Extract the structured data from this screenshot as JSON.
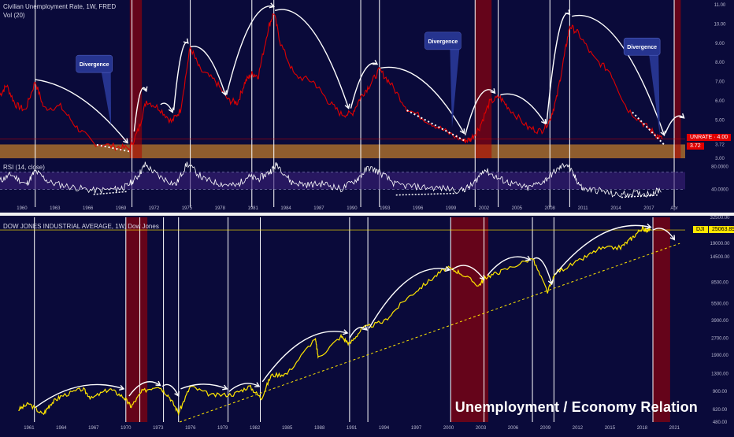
{
  "colors": {
    "background": "#0a0a3a",
    "unrate_line": "#e00000",
    "dji_line": "#ffe600",
    "rsi_line": "#ffffff",
    "recession": "#b00000",
    "support_band": "#c8802a",
    "callout": "#26348f",
    "annotation": "#ffffff"
  },
  "top_panel": {
    "legend_series": "Civilian Unemployment Rate, 1W, FRED",
    "legend_vol": "Vol (20)",
    "unrate_tag": "UNRATE · 4.00",
    "support_tag": "3.72",
    "callouts": [
      "Divergence",
      "Divergence",
      "Divergence"
    ]
  },
  "rsi_panel": {
    "legend": "RSI (14, close)"
  },
  "bottom_panel": {
    "legend": "DOW JONES INDUSTRIAL AVERAGE, 1W, Dow Jones",
    "price_tag_symbol": "DJI",
    "price_tag_value": "25063.89"
  },
  "watermark": "Unemployment / Economy Relation",
  "chart_data": [
    {
      "type": "line",
      "title": "Civilian Unemployment Rate, 1W, FRED",
      "series": [
        {
          "name": "Civilian Unemployment Rate",
          "x": [
            1958.0,
            1958.6,
            1959.4,
            1960.3,
            1961.2,
            1962.0,
            1963.5,
            1965.0,
            1966.5,
            1968.5,
            1969.8,
            1970.6,
            1971.3,
            1972.5,
            1973.6,
            1974.4,
            1975.3,
            1976.2,
            1977.6,
            1978.8,
            1979.6,
            1980.3,
            1980.9,
            1981.5,
            1982.4,
            1982.9,
            1983.5,
            1984.8,
            1986.5,
            1987.8,
            1989.0,
            1990.0,
            1990.8,
            1991.6,
            1992.5,
            1993.5,
            1995.0,
            1997.0,
            1998.5,
            2000.2,
            2000.8,
            2001.6,
            2002.5,
            2003.4,
            2004.3,
            2006.0,
            2007.2,
            2008.0,
            2008.6,
            2009.3,
            2009.8,
            2010.6,
            2012.0,
            2013.5,
            2015.0,
            2016.5,
            2017.5,
            2018.2
          ],
          "values": [
            6.3,
            6.8,
            5.8,
            5.5,
            7.0,
            5.6,
            5.7,
            4.6,
            3.8,
            3.6,
            3.5,
            4.5,
            6.0,
            5.6,
            4.9,
            5.5,
            8.8,
            7.6,
            7.0,
            6.0,
            5.9,
            7.0,
            7.4,
            7.3,
            9.8,
            10.6,
            9.0,
            7.3,
            7.0,
            6.0,
            5.3,
            5.3,
            6.2,
            6.8,
            7.6,
            6.9,
            5.6,
            4.9,
            4.4,
            3.9,
            4.0,
            4.6,
            5.9,
            6.2,
            5.6,
            4.6,
            4.4,
            5.0,
            6.1,
            8.3,
            9.9,
            9.5,
            8.2,
            7.5,
            5.6,
            4.8,
            4.3,
            4.0
          ]
        }
      ],
      "ylim": [
        3.0,
        11.0
      ],
      "y_ticks": [
        "11.00",
        "10.00",
        "9.00",
        "8.00",
        "7.00",
        "6.00",
        "5.00",
        "4.00",
        "3.72",
        "3.00"
      ],
      "x_ticks": [
        "1960",
        "1963",
        "1966",
        "1969",
        "1972",
        "1975",
        "1978",
        "1981",
        "1984",
        "1987",
        "1990",
        "1993",
        "1996",
        "1999",
        "2002",
        "2005",
        "2008",
        "2011",
        "2014",
        "2017",
        "Apr"
      ],
      "x_tick_values": [
        1960,
        1963,
        1966,
        1969,
        1972,
        1975,
        1978,
        1981,
        1984,
        1987,
        1990,
        1993,
        1996,
        1999,
        2002,
        2005,
        2008,
        2011,
        2014,
        2017,
        2019.3
      ],
      "recessions": [
        [
          1969.8,
          1970.9
        ],
        [
          2001.2,
          2002.7
        ],
        [
          2019.3,
          2019.9
        ]
      ],
      "support_band": [
        3.0,
        3.72
      ],
      "annotations": [
        "Divergence",
        "Divergence",
        "Divergence"
      ]
    },
    {
      "type": "line",
      "title": "RSI (14, close)",
      "series": [
        {
          "name": "RSI (14, close)",
          "x": [
            1958.0,
            1959.0,
            1960.4,
            1961.2,
            1962.5,
            1964.5,
            1966.5,
            1968.5,
            1969.5,
            1970.5,
            1971.2,
            1972.5,
            1974.0,
            1975.0,
            1976.5,
            1978.0,
            1979.5,
            1980.5,
            1981.5,
            1982.5,
            1983.2,
            1984.5,
            1986.0,
            1987.5,
            1989.0,
            1990.5,
            1991.5,
            1992.5,
            1994.0,
            1996.0,
            1998.0,
            2000.0,
            2001.0,
            2002.0,
            2003.2,
            2004.5,
            2006.0,
            2007.5,
            2008.5,
            2009.5,
            2010.3,
            2011.0,
            2012.5,
            2014.0,
            2015.5,
            2017.0,
            2018.2
          ],
          "values": [
            55,
            66,
            48,
            72,
            52,
            44,
            38,
            40,
            45,
            62,
            83,
            62,
            48,
            85,
            58,
            50,
            46,
            62,
            58,
            70,
            84,
            52,
            48,
            50,
            40,
            58,
            78,
            70,
            48,
            44,
            42,
            38,
            48,
            75,
            60,
            50,
            42,
            55,
            72,
            85,
            60,
            40,
            38,
            30,
            33,
            32,
            40
          ]
        }
      ],
      "ylim": [
        20,
        90
      ],
      "y_ticks": [
        "80.0000",
        "40.0000"
      ],
      "bands": [
        40,
        70
      ]
    },
    {
      "type": "line",
      "title": "DOW JONES INDUSTRIAL AVERAGE, 1W, Dow Jones",
      "series": [
        {
          "name": "DOW JONES INDUSTRIAL AVERAGE",
          "x": [
            1960.0,
            1961.0,
            1962.3,
            1963.0,
            1964.0,
            1966.0,
            1966.8,
            1968.5,
            1969.8,
            1970.5,
            1971.5,
            1973.0,
            1974.0,
            1974.9,
            1976.0,
            1978.0,
            1980.0,
            1981.5,
            1982.6,
            1983.5,
            1985.0,
            1987.6,
            1987.9,
            1990.0,
            1990.8,
            1992.0,
            1994.0,
            1996.0,
            1998.0,
            1999.8,
            2001.0,
            2002.8,
            2003.5,
            2005.0,
            2007.8,
            2009.2,
            2010.0,
            2012.0,
            2014.0,
            2016.0,
            2017.0,
            2018.0,
            2018.3,
            2018.8
          ],
          "values": [
            620,
            700,
            560,
            700,
            820,
            950,
            780,
            950,
            800,
            660,
            900,
            1020,
            820,
            580,
            1000,
            830,
            850,
            1000,
            780,
            1250,
            1300,
            2700,
            1800,
            2800,
            2400,
            3300,
            3800,
            6000,
            8500,
            11500,
            10500,
            8000,
            9500,
            10800,
            14000,
            7000,
            10500,
            13000,
            17000,
            17500,
            21000,
            26000,
            25000,
            25063.89
          ]
        }
      ],
      "ylim": [
        480,
        32500
      ],
      "y_ticks": [
        "32500.00",
        "25063.89",
        "19000.00",
        "14500.00",
        "8500.00",
        "5500.00",
        "3900.00",
        "2700.00",
        "1900.00",
        "1300.00",
        "900.00",
        "620.00",
        "480.00"
      ],
      "x_ticks": [
        "1961",
        "1964",
        "1967",
        "1970",
        "1973",
        "1976",
        "1979",
        "1982",
        "1985",
        "1988",
        "1991",
        "1994",
        "1997",
        "2000",
        "2003",
        "2006",
        "2009",
        "2012",
        "2015",
        "2018",
        "2021"
      ],
      "x_tick_values": [
        1961,
        1964,
        1967,
        1970,
        1973,
        1976,
        1979,
        1982,
        1985,
        1988,
        1991,
        1994,
        1997,
        2000,
        2003,
        2006,
        2009,
        2012,
        2015,
        2018,
        2021
      ],
      "recessions": [
        [
          1970.0,
          1972.0
        ],
        [
          2000.2,
          2003.7
        ],
        [
          2019.0,
          2020.6
        ]
      ],
      "trendline": {
        "x": [
          1975.0,
          2021.5
        ],
        "values": [
          480,
          19000
        ]
      }
    }
  ]
}
